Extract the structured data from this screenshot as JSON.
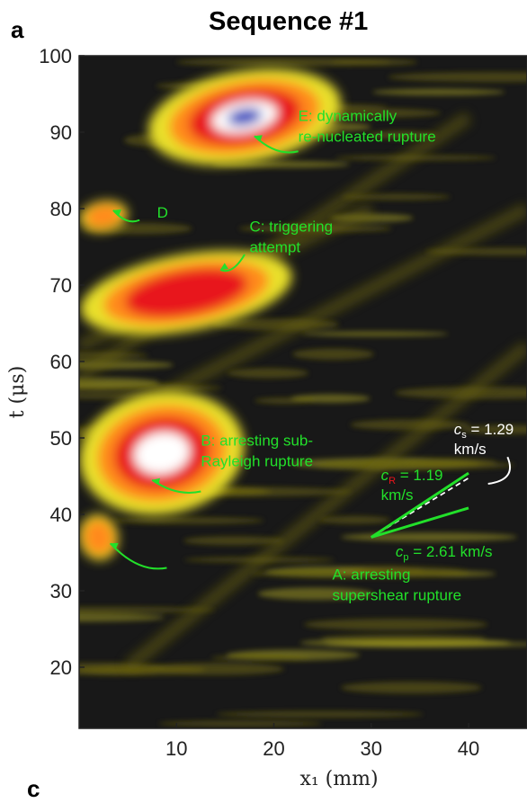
{
  "panel_label": "a",
  "next_panel_label": "c",
  "colors": {
    "background": "#181818",
    "annotation": "#22e02a",
    "speed_white": "#ffffff",
    "colormap": [
      "#181818",
      "#6b6410",
      "#e9e02a",
      "#ff8a1a",
      "#e8141a",
      "#ffffff",
      "#2a3fbf"
    ]
  },
  "chart_data": {
    "type": "heatmap",
    "title": "Sequence #1",
    "xlabel": "x₁ (mm)",
    "ylabel": "t (μs)",
    "xlim": [
      0,
      46
    ],
    "ylim": [
      12,
      100
    ],
    "xticks": [
      10,
      20,
      30,
      40
    ],
    "yticks": [
      20,
      30,
      40,
      50,
      60,
      70,
      80,
      90,
      100
    ],
    "grid": false,
    "features": [
      {
        "name": "A",
        "x": [
          0,
          4
        ],
        "t": [
          34,
          40
        ],
        "peak_level": 0.6
      },
      {
        "name": "B",
        "x": [
          0,
          17
        ],
        "t": [
          40,
          56
        ],
        "peak_level": 0.95
      },
      {
        "name": "C",
        "x": [
          0,
          22
        ],
        "t": [
          64,
          74
        ],
        "peak_level": 0.75
      },
      {
        "name": "D",
        "x": [
          0,
          5
        ],
        "t": [
          77,
          81
        ],
        "peak_level": 0.5
      },
      {
        "name": "E",
        "x": [
          7,
          27
        ],
        "t": [
          86,
          98
        ],
        "peak_level": 1.0
      }
    ],
    "annotations": [
      {
        "id": "A",
        "lines": [
          "A: arresting",
          "supershear rupture"
        ]
      },
      {
        "id": "B",
        "lines": [
          "B: arresting sub-",
          "Rayleigh rupture"
        ]
      },
      {
        "id": "C",
        "lines": [
          "C: triggering",
          "attempt"
        ]
      },
      {
        "id": "D",
        "lines": [
          "D"
        ]
      },
      {
        "id": "E",
        "lines": [
          "E: dynamically",
          "re-nucleated rupture"
        ]
      }
    ],
    "wave_speeds": [
      {
        "symbol": "c",
        "subscript": "s",
        "value": "= 1.29",
        "unit": "km/s",
        "km_per_s": 1.29,
        "style": "dashed-white"
      },
      {
        "symbol": "c",
        "subscript": "R",
        "value": "= 1.19",
        "unit": "km/s",
        "km_per_s": 1.19,
        "style": "solid-green"
      },
      {
        "symbol": "c",
        "subscript": "p",
        "value": "= 2.61 km/s",
        "unit": "",
        "km_per_s": 2.61,
        "style": "solid-green"
      }
    ],
    "speed_origin": {
      "x": 30,
      "t": 37
    }
  }
}
